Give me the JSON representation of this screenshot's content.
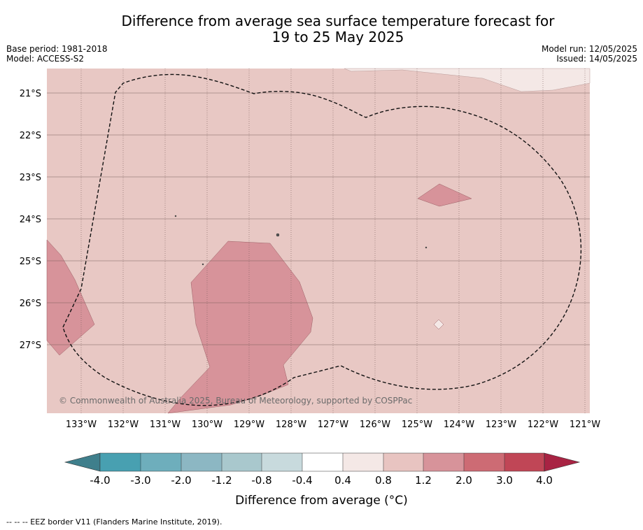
{
  "title_line1": "Difference from average sea surface temperature forecast for",
  "title_line2": "19 to 25 May 2025",
  "info_left": [
    "Base period: 1981-2018",
    "Model: ACCESS-S2"
  ],
  "info_right": [
    "Model run: 12/05/2025",
    "Issued: 14/05/2025"
  ],
  "map": {
    "lat_labels": [
      "21°S",
      "22°S",
      "23°S",
      "24°S",
      "25°S",
      "26°S",
      "27°S"
    ],
    "lon_labels": [
      "133°W",
      "132°W",
      "131°W",
      "130°W",
      "129°W",
      "128°W",
      "127°W",
      "126°W",
      "125°W",
      "124°W",
      "123°W",
      "122°W",
      "121°W"
    ],
    "copyright": "© Commonwealth of Australia 2025, Bureau of Meteorology, supported by COSPPac",
    "fill_colors": {
      "background": "#e8c8c4",
      "anomaly_1_2_to_2_0": "#d7939a",
      "anomaly_0_4_to_0_8": "#f4e8e6"
    }
  },
  "colorbar": {
    "ticks": [
      "-4.0",
      "-3.0",
      "-2.0",
      "-1.2",
      "-0.8",
      "-0.4",
      "0.4",
      "0.8",
      "1.2",
      "2.0",
      "3.0",
      "4.0"
    ],
    "colors": [
      "#3f7f8c",
      "#48a0b1",
      "#6eaebc",
      "#8cb7c3",
      "#a9c8cd",
      "#c8dadd",
      "#ffffff",
      "#f4e8e6",
      "#e8c4c1",
      "#d7939a",
      "#cd6b74",
      "#c04656",
      "#a82343"
    ],
    "label": "Difference from average (°C)"
  },
  "footer": "--  --  -- EEZ border V11 (Flanders Marine Institute, 2019)."
}
